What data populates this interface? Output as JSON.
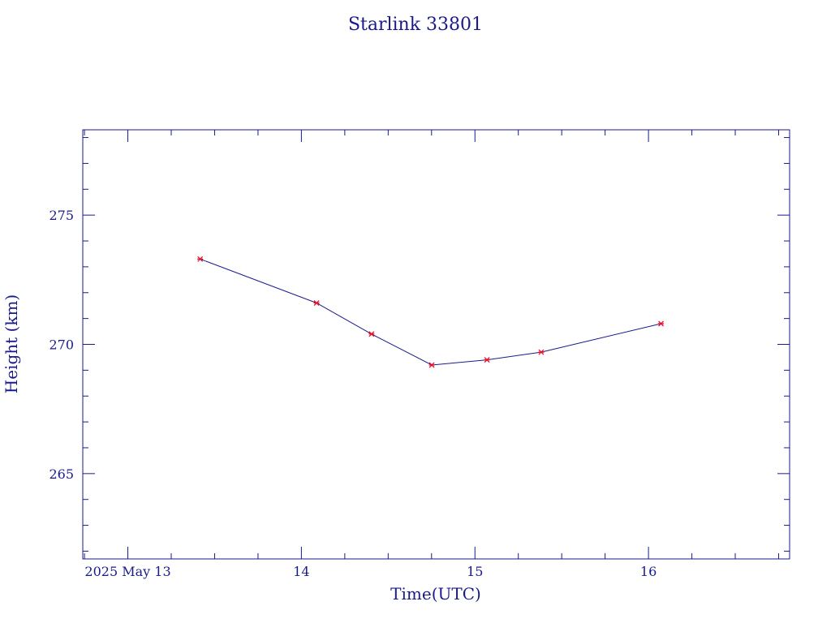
{
  "chart_data": {
    "type": "line",
    "title": "Starlink 33801",
    "xlabel": "Time(UTC)",
    "ylabel": "Height (km)",
    "xlim": [
      "2025-05-12T17:46",
      "2025-05-16T19:31"
    ],
    "ylim": [
      261.7,
      278.3
    ],
    "x_ticks": [
      {
        "value": "2025-05-13T00:00",
        "label": "2025 May 13"
      },
      {
        "value": "2025-05-14T00:00",
        "label": "14"
      },
      {
        "value": "2025-05-15T00:00",
        "label": "15"
      },
      {
        "value": "2025-05-16T00:00",
        "label": "16"
      }
    ],
    "y_ticks": [
      265,
      270,
      275
    ],
    "grid": false,
    "series": [
      {
        "color": "#1a1a8c",
        "marker_color": "#e8102b",
        "points": [
          {
            "x": "2025-05-13T10:00",
            "y": 273.3
          },
          {
            "x": "2025-05-14T02:06",
            "y": 271.6
          },
          {
            "x": "2025-05-14T09:42",
            "y": 270.4
          },
          {
            "x": "2025-05-14T18:02",
            "y": 269.2
          },
          {
            "x": "2025-05-15T01:40",
            "y": 269.4
          },
          {
            "x": "2025-05-15T09:10",
            "y": 269.7
          },
          {
            "x": "2025-05-16T01:44",
            "y": 270.8
          }
        ]
      }
    ]
  }
}
